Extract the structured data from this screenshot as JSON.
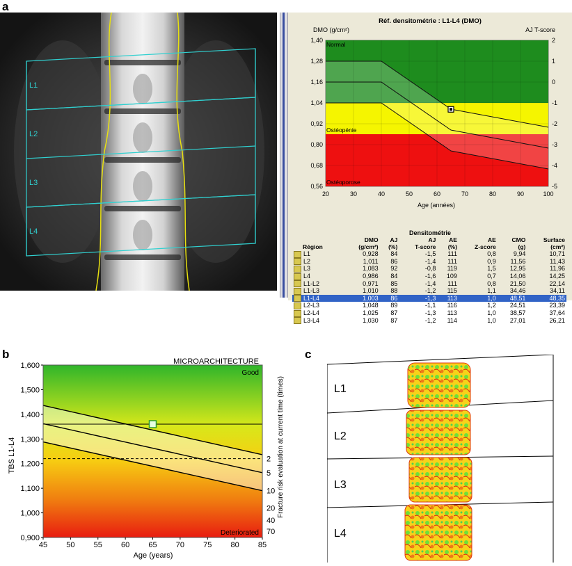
{
  "panels": {
    "a": "a",
    "b": "b",
    "c": "c"
  },
  "xray_labels": [
    "L1",
    "L2",
    "L3",
    "L4"
  ],
  "dmo_chart": {
    "title": "Réf. densitométrie : L1-L4 (DMO)",
    "left_axis_label": "DMO (g/cm²)",
    "right_axis_label": "AJ T-score",
    "xlabel": "Age (années)",
    "zone_labels": {
      "normal": "Normal",
      "osteopenia": "Ostéopénie",
      "osteoporosis": "Ostéoporose"
    },
    "y_ticks": [
      "1,40",
      "1,28",
      "1,16",
      "1,04",
      "0,92",
      "0,80",
      "0,68",
      "0,56"
    ],
    "t_ticks": [
      "2",
      "1",
      "0",
      "-1",
      "-2",
      "-3",
      "-4",
      "-5"
    ],
    "x_ticks": [
      "20",
      "30",
      "40",
      "50",
      "60",
      "70",
      "80",
      "90",
      "100"
    ],
    "colors": {
      "normal": "#1e8c1e",
      "osteopenia": "#f5f500",
      "osteoporosis": "#ee1010"
    }
  },
  "table": {
    "title": "Densitométrie",
    "headers": [
      "Région",
      "DMO\n(g/cm²)",
      "AJ\n(%)",
      "AJ\nT-score",
      "AE\n(%)",
      "AE\nZ-score",
      "CMO\n(g)",
      "Surface\n(cm²)"
    ],
    "rows": [
      [
        "L1",
        "0,928",
        "84",
        "-1,5",
        "111",
        "0,8",
        "9,94",
        "10,71"
      ],
      [
        "L2",
        "1,011",
        "86",
        "-1,4",
        "111",
        "0,9",
        "11,56",
        "11,43"
      ],
      [
        "L3",
        "1,083",
        "92",
        "-0,8",
        "119",
        "1,5",
        "12,95",
        "11,96"
      ],
      [
        "L4",
        "0,986",
        "84",
        "-1,6",
        "109",
        "0,7",
        "14,06",
        "14,25"
      ],
      [
        "L1-L2",
        "0,971",
        "85",
        "-1,4",
        "111",
        "0,8",
        "21,50",
        "22,14"
      ],
      [
        "L1-L3",
        "1,010",
        "88",
        "-1,2",
        "115",
        "1,1",
        "34,46",
        "34,11"
      ],
      [
        "L1-L4",
        "1,003",
        "86",
        "-1,3",
        "113",
        "1,0",
        "48,51",
        "48,35"
      ],
      [
        "L2-L3",
        "1,048",
        "89",
        "-1,1",
        "116",
        "1,2",
        "24,51",
        "23,39"
      ],
      [
        "L2-L4",
        "1,025",
        "87",
        "-1,3",
        "113",
        "1,0",
        "38,57",
        "37,64"
      ],
      [
        "L3-L4",
        "1,030",
        "87",
        "-1,2",
        "114",
        "1,0",
        "27,01",
        "26,21"
      ]
    ],
    "selected_row": "L1-L4"
  },
  "tbs_chart": {
    "title": "MICROARCHITECTURE",
    "ylabel": "TBS L1-L4",
    "xlabel": "Age  (years)",
    "right_label": "Fracture risk evaluation at current time (times)",
    "good_label": "Good",
    "bad_label": "Deteriorated",
    "y_ticks": [
      "1,600",
      "1,500",
      "1,400",
      "1,300",
      "1,200",
      "1,100",
      "1,000",
      "0,900"
    ],
    "x_ticks": [
      "45",
      "50",
      "55",
      "60",
      "65",
      "70",
      "75",
      "80",
      "85"
    ],
    "risk_ticks": [
      "2",
      "5",
      "10",
      "20",
      "40",
      "70"
    ]
  },
  "chart_data": [
    {
      "type": "line",
      "title": "Réf. densitométrie : L1-L4 (DMO)",
      "xlabel": "Age (années)",
      "ylabel": "DMO (g/cm²)",
      "xlim": [
        20,
        100
      ],
      "ylim": [
        0.56,
        1.4
      ],
      "series": [
        {
          "x": [
            20,
            40,
            65,
            100
          ],
          "y": [
            1.28,
            1.28,
            1.004,
            0.9
          ]
        },
        {
          "x": [
            20,
            40,
            65,
            100
          ],
          "y": [
            1.16,
            1.16,
            0.884,
            0.78
          ]
        },
        {
          "x": [
            20,
            40,
            65,
            100
          ],
          "y": [
            1.04,
            1.04,
            0.764,
            0.66
          ]
        }
      ],
      "point": {
        "x": 65,
        "y": 1.003
      },
      "zones": [
        {
          "name": "Normal",
          "from": 1.04,
          "to": 1.4
        },
        {
          "name": "Ostéopénie",
          "from": 0.86,
          "to": 1.04
        },
        {
          "name": "Ostéoporose",
          "from": 0.56,
          "to": 0.86
        }
      ]
    },
    {
      "type": "line",
      "title": "MICROARCHITECTURE",
      "xlabel": "Age  (years)",
      "ylabel": "TBS L1-L4",
      "xlim": [
        45,
        85
      ],
      "ylim": [
        0.9,
        1.6
      ],
      "series": [
        {
          "x": [
            45,
            85
          ],
          "y": [
            1.436,
            1.236
          ]
        },
        {
          "x": [
            45,
            85
          ],
          "y": [
            1.362,
            1.163
          ]
        },
        {
          "x": [
            45,
            85
          ],
          "y": [
            1.288,
            1.09
          ]
        }
      ],
      "reference_lines": [
        1.36,
        1.22
      ],
      "point": {
        "x": 65,
        "y": 1.36
      }
    }
  ]
}
